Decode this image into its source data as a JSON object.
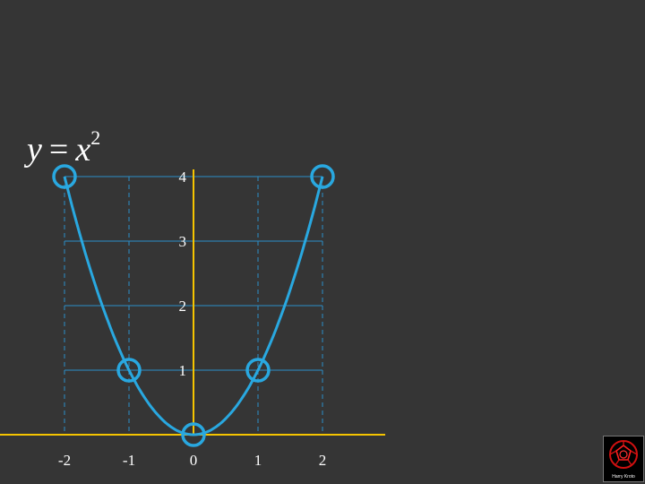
{
  "slide": {
    "equation": {
      "lhs": "y",
      "op": "=",
      "base": "x",
      "exponent": "2"
    },
    "logo": {
      "text": "Harry Kroto",
      "icon": "fullerene-molecule-icon"
    }
  },
  "chart_data": {
    "type": "line",
    "title": "",
    "xlabel": "",
    "ylabel": "",
    "x_ticks": [
      "-2",
      "-1",
      "0",
      "1",
      "2"
    ],
    "y_ticks": [
      "1",
      "2",
      "3",
      "4"
    ],
    "xlim": [
      -3,
      3
    ],
    "ylim": [
      0,
      4
    ],
    "grid": true,
    "series": [
      {
        "function": "y = x^2",
        "x": [
          -2,
          -1.5,
          -1,
          -0.5,
          0,
          0.5,
          1,
          1.5,
          2
        ],
        "y": [
          4,
          2.25,
          1,
          0.25,
          0,
          0.25,
          1,
          2.25,
          4
        ],
        "markers": [
          {
            "x": -2,
            "y": 4
          },
          {
            "x": -1,
            "y": 1
          },
          {
            "x": 0,
            "y": 0
          },
          {
            "x": 1,
            "y": 1
          },
          {
            "x": 2,
            "y": 4
          }
        ]
      }
    ],
    "colors": {
      "curve": "#29a8e0",
      "axis": "#f5c400",
      "grid": "#2c8fc9",
      "labels": "#ffffff"
    }
  }
}
